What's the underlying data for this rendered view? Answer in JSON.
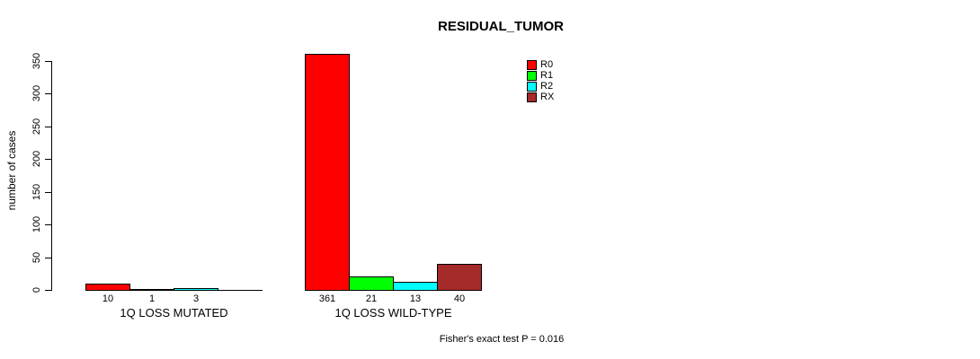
{
  "chart_data": {
    "type": "bar",
    "title": "RESIDUAL_TUMOR",
    "ylabel": "number of cases",
    "xlabel": "",
    "ylim": [
      0,
      350
    ],
    "yticks": [
      0,
      50,
      100,
      150,
      200,
      250,
      300,
      350
    ],
    "grid": false,
    "legend_position": "top-right",
    "series": [
      {
        "name": "R0",
        "color": "#ff0000"
      },
      {
        "name": "R1",
        "color": "#00ff00"
      },
      {
        "name": "R2",
        "color": "#00ffff"
      },
      {
        "name": "RX",
        "color": "#a52a2a"
      }
    ],
    "categories": [
      "1Q LOSS MUTATED",
      "1Q LOSS WILD-TYPE"
    ],
    "groups": [
      {
        "label": "1Q LOSS MUTATED",
        "values": [
          10,
          1,
          3,
          0
        ],
        "value_labels": [
          "10",
          "1",
          "3",
          ""
        ]
      },
      {
        "label": "1Q LOSS WILD-TYPE",
        "values": [
          361,
          21,
          13,
          40
        ],
        "value_labels": [
          "361",
          "21",
          "13",
          "40"
        ]
      }
    ],
    "annotation": "Fisher's exact test P = 0.016",
    "bar_border_color": "#000000",
    "axis_color": "#000000"
  }
}
